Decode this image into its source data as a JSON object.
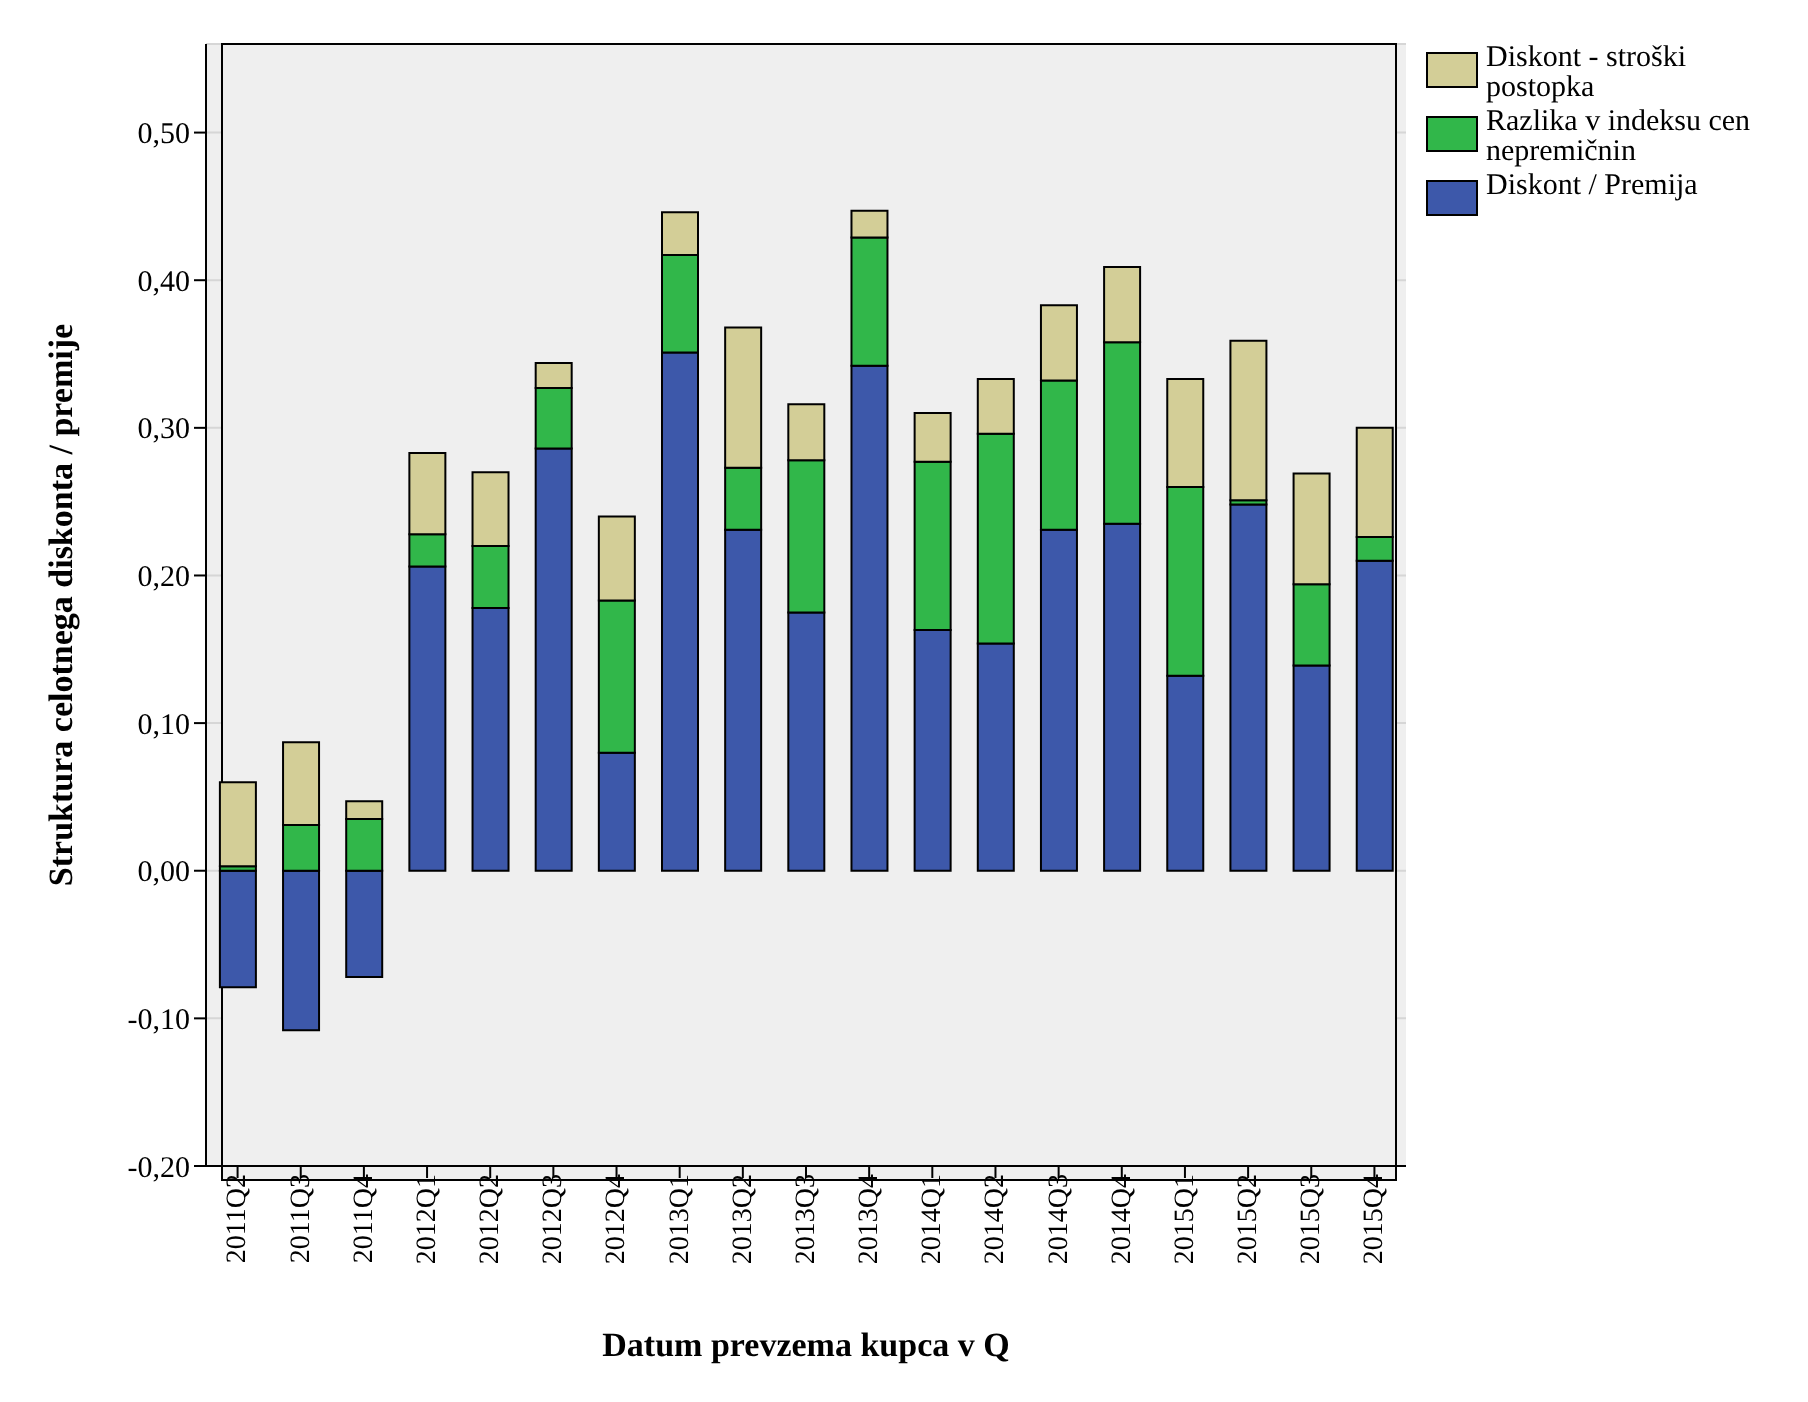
{
  "chart_data": {
    "type": "bar",
    "stacked": true,
    "xlabel": "Datum prevzema kupca v Q",
    "ylabel": "Struktura celotnega diskonta / premije",
    "categories": [
      "2011Q2",
      "2011Q3",
      "2011Q4",
      "2012Q1",
      "2012Q2",
      "2012Q3",
      "2012Q4",
      "2013Q1",
      "2013Q2",
      "2013Q3",
      "2013Q4",
      "2014Q1",
      "2014Q2",
      "2014Q3",
      "2014Q4",
      "2015Q1",
      "2015Q2",
      "2015Q3",
      "2015Q4"
    ],
    "series": [
      {
        "name": "Diskont / Premija",
        "color": "#3d58aa",
        "values": [
          -0.079,
          -0.108,
          -0.072,
          0.206,
          0.178,
          0.286,
          0.08,
          0.351,
          0.231,
          0.175,
          0.342,
          0.163,
          0.154,
          0.231,
          0.235,
          0.132,
          0.248,
          0.139,
          0.21
        ]
      },
      {
        "name": "Razlika v indeksu cen nepremičnin",
        "color": "#31b74a",
        "values": [
          0.003,
          0.031,
          0.035,
          0.022,
          0.042,
          0.041,
          0.103,
          0.066,
          0.042,
          0.103,
          0.087,
          0.114,
          0.142,
          0.101,
          0.123,
          0.128,
          0.003,
          0.055,
          0.016
        ]
      },
      {
        "name": "Diskont - stroški postopka",
        "color": "#d3ce97",
        "values": [
          0.057,
          0.056,
          0.012,
          0.055,
          0.05,
          0.017,
          0.057,
          0.029,
          0.095,
          0.038,
          0.018,
          0.033,
          0.037,
          0.051,
          0.051,
          0.073,
          0.108,
          0.075,
          0.074
        ]
      }
    ],
    "ylim": [
      -0.2,
      0.56
    ],
    "yticks": [
      {
        "value": -0.2,
        "label": "-0,20"
      },
      {
        "value": -0.1,
        "label": "-0,10"
      },
      {
        "value": 0,
        "label": "0,00"
      },
      {
        "value": 0.1,
        "label": "0,10"
      },
      {
        "value": 0.2,
        "label": "0,20"
      },
      {
        "value": 0.3,
        "label": "0,30"
      },
      {
        "value": 0.4,
        "label": "0,40"
      },
      {
        "value": 0.5,
        "label": "0,50"
      }
    ],
    "grid": "y",
    "legend": "top right"
  }
}
